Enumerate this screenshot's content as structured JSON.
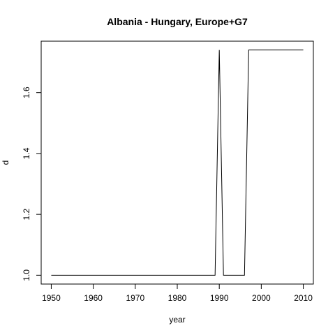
{
  "chart_data": {
    "type": "line",
    "title": "Albania - Hungary, Europe+G7",
    "xlabel": "year",
    "ylabel": "d",
    "xlim": [
      1947.6,
      2012.4
    ],
    "ylim": [
      0.971,
      1.769
    ],
    "xticks": [
      1950,
      1960,
      1970,
      1980,
      1990,
      2000,
      2010
    ],
    "yticks": [
      1.0,
      1.2,
      1.4,
      1.6
    ],
    "ytick_labels": [
      "1.0",
      "1.2",
      "1.4",
      "1.6"
    ],
    "grid": false,
    "series": [
      {
        "x": [
          1950,
          1951,
          1952,
          1953,
          1954,
          1955,
          1956,
          1957,
          1958,
          1959,
          1960,
          1961,
          1962,
          1963,
          1964,
          1965,
          1966,
          1967,
          1968,
          1969,
          1970,
          1971,
          1972,
          1973,
          1974,
          1975,
          1976,
          1977,
          1978,
          1979,
          1980,
          1981,
          1982,
          1983,
          1984,
          1985,
          1986,
          1987,
          1988,
          1989,
          1990,
          1991,
          1992,
          1993,
          1994,
          1995,
          1996,
          1997,
          1998,
          1999,
          2000,
          2001,
          2002,
          2003,
          2004,
          2005,
          2006,
          2007,
          2008,
          2009,
          2010
        ],
        "y": [
          1,
          1,
          1,
          1,
          1,
          1,
          1,
          1,
          1,
          1,
          1,
          1,
          1,
          1,
          1,
          1,
          1,
          1,
          1,
          1,
          1,
          1,
          1,
          1,
          1,
          1,
          1,
          1,
          1,
          1,
          1,
          1,
          1,
          1,
          1,
          1,
          1,
          1,
          1,
          1,
          1.74,
          1,
          1,
          1,
          1,
          1,
          1,
          1.74,
          1.74,
          1.74,
          1.74,
          1.74,
          1.74,
          1.74,
          1.74,
          1.74,
          1.74,
          1.74,
          1.74,
          1.74,
          1.74
        ]
      }
    ]
  }
}
